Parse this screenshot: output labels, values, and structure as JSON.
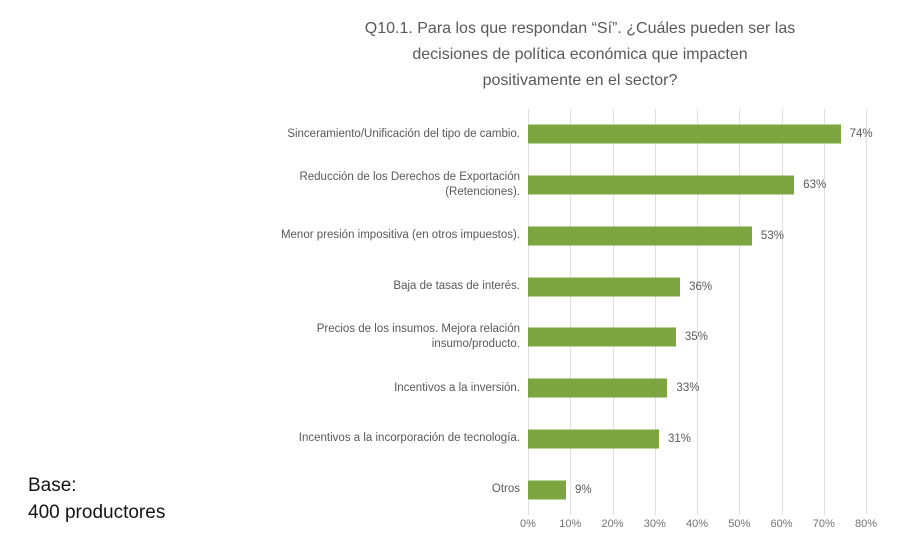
{
  "chart_data": {
    "type": "bar",
    "orientation": "horizontal",
    "title": "Q10.1. Para los que respondan “Sí”. ¿Cuáles pueden ser las decisiones de política económica que impacten positivamente en el sector?",
    "title_lines": [
      "Q10.1. Para los que respondan “Sí”. ¿Cuáles pueden ser las",
      "decisiones de política económica que impacten",
      "positivamente en el sector?"
    ],
    "categories": [
      "Sinceramiento/Unificación del tipo de cambio.",
      "Reducción de los Derechos de Exportación (Retenciones).",
      "Menor presión impositiva (en otros impuestos).",
      "Baja de tasas de interés.",
      "Precios de los insumos. Mejora relación insumo/producto.",
      "Incentivos a la inversión.",
      "Incentivos a la incorporación de tecnología.",
      "Otros"
    ],
    "values": [
      74,
      63,
      53,
      36,
      35,
      33,
      31,
      9
    ],
    "value_labels": [
      "74%",
      "63%",
      "53%",
      "36%",
      "35%",
      "33%",
      "31%",
      "9%"
    ],
    "xticks": [
      "0%",
      "10%",
      "20%",
      "30%",
      "40%",
      "50%",
      "60%",
      "70%",
      "80%"
    ],
    "xlim": [
      0,
      80
    ],
    "xlabel": "",
    "ylabel": "",
    "grid": true,
    "legend": false,
    "bar_color": "#7da540",
    "grid_color": "#e0e0e0",
    "text_color": "#595959"
  },
  "base_note": {
    "line1": "Base:",
    "line2": "400 productores"
  }
}
